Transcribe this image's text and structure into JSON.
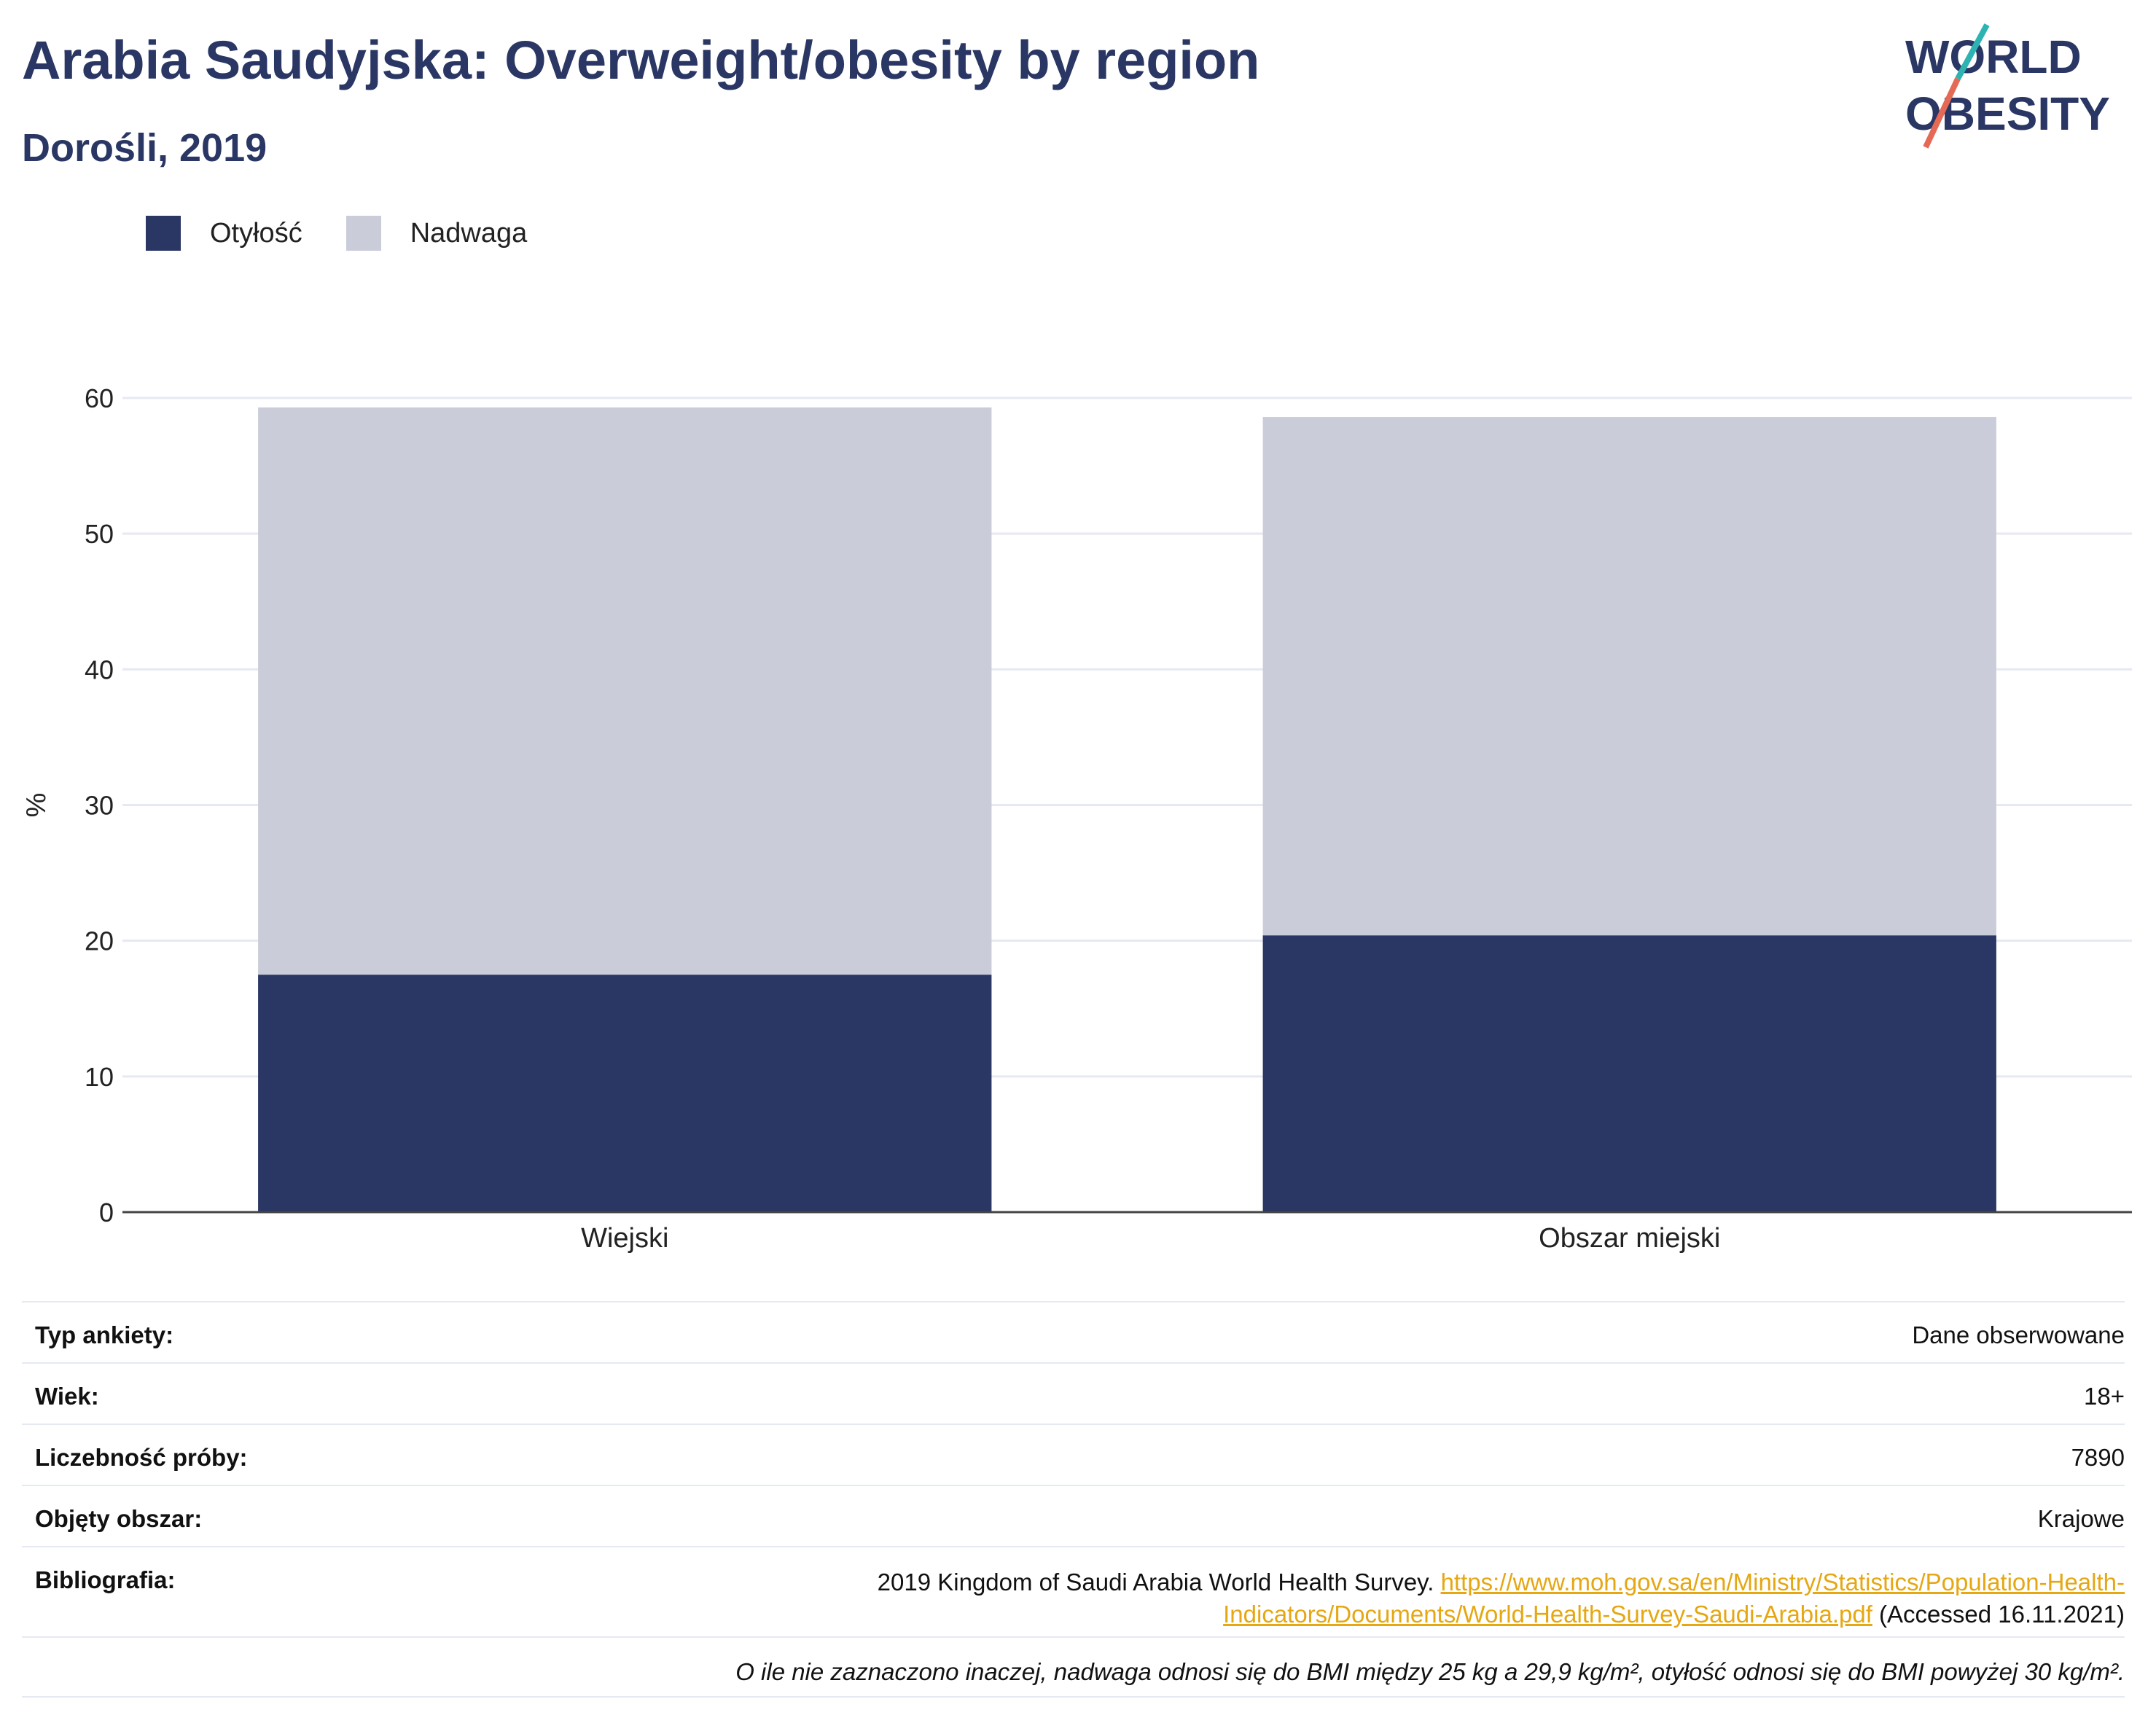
{
  "header": {
    "title": "Arabia Saudyjska: Overweight/obesity by region",
    "subtitle": "Dorośli, 2019"
  },
  "logo": {
    "line1": "WORLD",
    "line2": "OBESITY",
    "icon": "world-obesity-logo"
  },
  "colors": {
    "obesity": "#2a3663",
    "overweight": "#cacdd9",
    "title": "#2a3663",
    "link": "#e5a712",
    "grid": "#e6e9f2"
  },
  "legend": [
    {
      "label": "Otyłość",
      "color": "#2a3663"
    },
    {
      "label": "Nadwaga",
      "color": "#cacdd9"
    }
  ],
  "chart_data": {
    "type": "bar",
    "stacked": true,
    "categories": [
      "Wiejski",
      "Obszar miejski"
    ],
    "series": [
      {
        "name": "Otyłość",
        "values": [
          17.5,
          20.4
        ]
      },
      {
        "name": "Nadwaga",
        "values": [
          41.8,
          38.2
        ]
      }
    ],
    "ylabel": "%",
    "xlabel": "",
    "ylim": [
      0,
      60
    ],
    "yticks": [
      0,
      10,
      20,
      30,
      40,
      50,
      60
    ],
    "grid": true
  },
  "info": [
    {
      "label": "Typ ankiety:",
      "value": "Dane obserwowane"
    },
    {
      "label": "Wiek:",
      "value": "18+"
    },
    {
      "label": "Liczebność próby:",
      "value": "7890"
    },
    {
      "label": "Objęty obszar:",
      "value": "Krajowe"
    }
  ],
  "bibliography": {
    "label": "Bibliografia:",
    "prefix": "2019 Kingdom of Saudi Arabia World Health Survey. ",
    "link": "https://www.moh.gov.sa/en/Ministry/Statistics/Population-Health-Indicators/Documents/World-Health-Survey-Saudi-Arabia.pdf",
    "suffix": " (Accessed 16.11.2021)"
  },
  "footnote": "O ile nie zaznaczono inaczej, nadwaga odnosi się do BMI między 25 kg a 29,9 kg/m², otyłość odnosi się do BMI powyżej 30 kg/m²."
}
